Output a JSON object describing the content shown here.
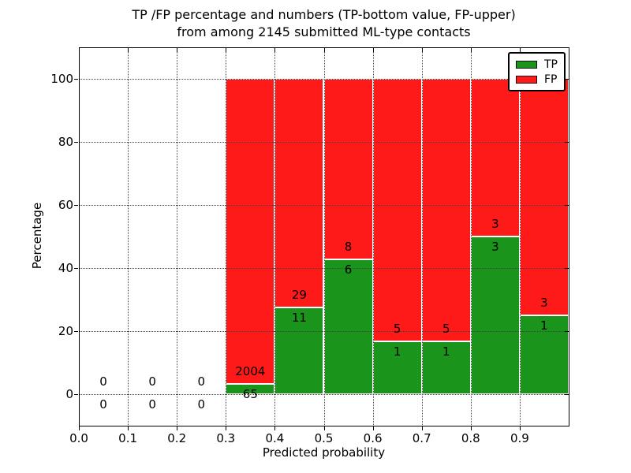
{
  "figure": {
    "title_line1": "TP /FP percentage and numbers (TP-bottom value, FP-upper)",
    "title_line2": "from among 2145 submitted ML-type contacts",
    "background": "#ffffff"
  },
  "axes": {
    "xlabel": "Predicted probability",
    "ylabel": "Percentage",
    "x_tick_values": [
      0.0,
      0.1,
      0.2,
      0.3,
      0.4,
      0.5,
      0.6,
      0.7,
      0.8,
      0.9
    ],
    "x_tick_labels": [
      "0.0",
      "0.1",
      "0.2",
      "0.3",
      "0.4",
      "0.5",
      "0.6",
      "0.7",
      "0.8",
      "0.9"
    ],
    "y_tick_values": [
      0,
      20,
      40,
      60,
      80,
      100
    ],
    "y_tick_labels": [
      "0",
      "20",
      "40",
      "60",
      "80",
      "100"
    ],
    "xlim": [
      0.0,
      1.0
    ],
    "ylim": [
      -10,
      110
    ],
    "grid_style": "dotted"
  },
  "legend": {
    "position": "upper-right",
    "items": [
      {
        "label": "TP",
        "color": "#1a941a"
      },
      {
        "label": "FP",
        "color": "#ff1a1a"
      }
    ]
  },
  "chart_data": {
    "type": "bar",
    "stacked": true,
    "title": "TP /FP percentage and numbers (TP-bottom value, FP-upper) from among 2145 submitted ML-type contacts",
    "xlabel": "Predicted probability",
    "ylabel": "Percentage",
    "xlim": [
      0.0,
      1.0
    ],
    "ylim": [
      -10,
      110
    ],
    "grid": true,
    "legend_position": "upper-right",
    "total_contacts": 2145,
    "bin_width": 0.1,
    "series": [
      {
        "name": "TP",
        "color": "#1a941a",
        "stack_position": "bottom"
      },
      {
        "name": "FP",
        "color": "#ff1a1a",
        "stack_position": "top"
      }
    ],
    "bins": [
      {
        "x_start": 0.0,
        "x_end": 0.1,
        "tp_count": 0,
        "fp_count": 0,
        "tp_pct": null,
        "fp_pct": null
      },
      {
        "x_start": 0.1,
        "x_end": 0.2,
        "tp_count": 0,
        "fp_count": 0,
        "tp_pct": null,
        "fp_pct": null
      },
      {
        "x_start": 0.2,
        "x_end": 0.3,
        "tp_count": 0,
        "fp_count": 0,
        "tp_pct": null,
        "fp_pct": null
      },
      {
        "x_start": 0.3,
        "x_end": 0.4,
        "tp_count": 65,
        "fp_count": 2004,
        "tp_pct": 3.14,
        "fp_pct": 96.86
      },
      {
        "x_start": 0.4,
        "x_end": 0.5,
        "tp_count": 11,
        "fp_count": 29,
        "tp_pct": 27.5,
        "fp_pct": 72.5
      },
      {
        "x_start": 0.5,
        "x_end": 0.6,
        "tp_count": 6,
        "fp_count": 8,
        "tp_pct": 42.86,
        "fp_pct": 57.14
      },
      {
        "x_start": 0.6,
        "x_end": 0.7,
        "tp_count": 1,
        "fp_count": 5,
        "tp_pct": 16.67,
        "fp_pct": 83.33
      },
      {
        "x_start": 0.7,
        "x_end": 0.8,
        "tp_count": 1,
        "fp_count": 5,
        "tp_pct": 16.67,
        "fp_pct": 83.33
      },
      {
        "x_start": 0.8,
        "x_end": 0.9,
        "tp_count": 3,
        "fp_count": 3,
        "tp_pct": 50.0,
        "fp_pct": 50.0
      },
      {
        "x_start": 0.9,
        "x_end": 1.0,
        "tp_count": 1,
        "fp_count": 3,
        "tp_pct": 25.0,
        "fp_pct": 75.0
      }
    ]
  }
}
